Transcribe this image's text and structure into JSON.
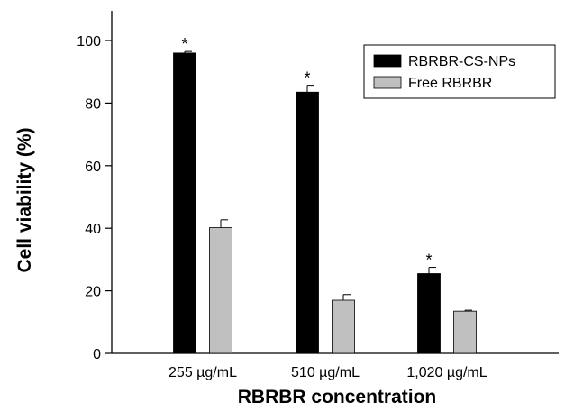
{
  "chart_data": {
    "type": "bar",
    "categories": [
      "255 µg/mL",
      "510 µg/mL",
      "1,020 µg/mL"
    ],
    "series": [
      {
        "name": "RBRBR-CS-NPs",
        "values": [
          96,
          83.5,
          25.5
        ],
        "errors": [
          0.5,
          2.2,
          2
        ],
        "significance": [
          "*",
          "*",
          "*"
        ],
        "color": "#000000"
      },
      {
        "name": "Free RBRBR",
        "values": [
          40.2,
          17,
          13.5
        ],
        "errors": [
          2.5,
          1.8,
          0.3
        ],
        "significance": [
          "",
          "",
          ""
        ],
        "color": "#c0c0c0"
      }
    ],
    "xlabel": "RBRBR concentration",
    "ylabel": "Cell viability (%)",
    "ylim": [
      0,
      100
    ],
    "yticks": [
      0,
      20,
      40,
      60,
      80,
      100
    ],
    "grid": false,
    "legend_position": "top-right"
  }
}
